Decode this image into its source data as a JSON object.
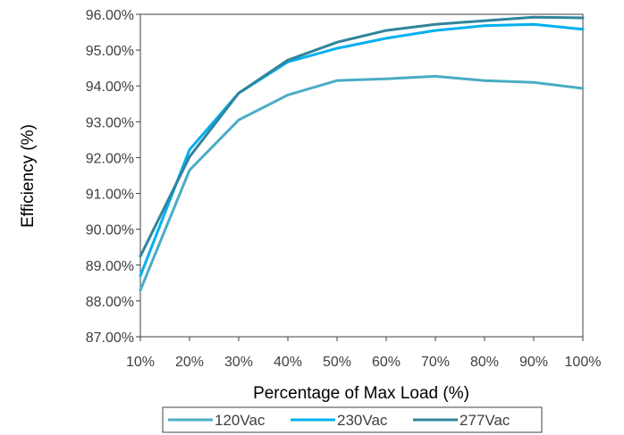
{
  "chart_data": {
    "type": "line",
    "title": "",
    "xlabel": "Percentage of Max Load (%)",
    "ylabel": "Efficiency (%)",
    "categories": [
      "10%",
      "20%",
      "30%",
      "40%",
      "50%",
      "60%",
      "70%",
      "80%",
      "90%",
      "100%"
    ],
    "yticks": [
      "87.00%",
      "88.00%",
      "89.00%",
      "90.00%",
      "91.00%",
      "92.00%",
      "93.00%",
      "94.00%",
      "95.00%",
      "96.00%"
    ],
    "ylim": [
      87,
      96
    ],
    "grid": false,
    "legend": "bottom",
    "series": [
      {
        "name": "120Vac",
        "color": "#4bacc6",
        "values": [
          88.3,
          91.65,
          93.05,
          93.75,
          94.15,
          94.2,
          94.27,
          94.15,
          94.1,
          93.93
        ]
      },
      {
        "name": "230Vac",
        "color": "#00b0f0",
        "values": [
          88.7,
          92.22,
          93.8,
          94.67,
          95.05,
          95.33,
          95.55,
          95.68,
          95.72,
          95.58
        ]
      },
      {
        "name": "277Vac",
        "color": "#31849b",
        "values": [
          89.25,
          92.02,
          93.8,
          94.72,
          95.22,
          95.55,
          95.72,
          95.82,
          95.92,
          95.9
        ]
      }
    ]
  }
}
